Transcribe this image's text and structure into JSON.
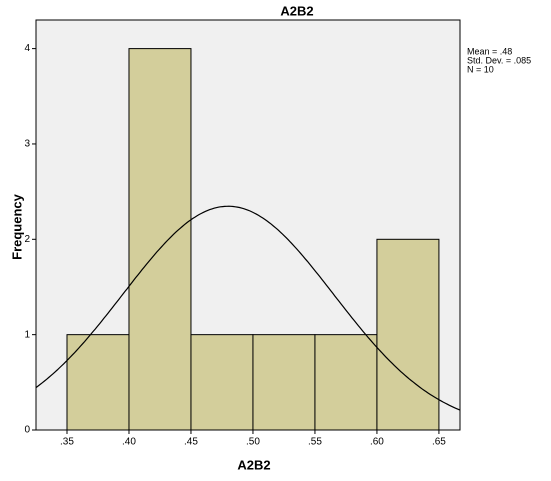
{
  "chart_data": {
    "type": "histogram",
    "title": "A2B2",
    "x_label": "A2B2",
    "y_label": "Frequency",
    "bins": [
      0.35,
      0.4,
      0.45,
      0.5,
      0.55,
      0.6,
      0.65
    ],
    "counts": [
      1,
      4,
      1,
      1,
      1,
      2
    ],
    "color": "#d3ce9b",
    "xlim": [
      0.325,
      0.667
    ],
    "ylim": [
      0,
      4.3
    ],
    "xticks": [
      {
        "value": 0.35,
        "label": ".35"
      },
      {
        "value": 0.4,
        "label": ".40"
      },
      {
        "value": 0.45,
        "label": ".45"
      },
      {
        "value": 0.5,
        "label": ".50"
      },
      {
        "value": 0.55,
        "label": ".55"
      },
      {
        "value": 0.6,
        "label": ".60"
      },
      {
        "value": 0.65,
        "label": ".65"
      }
    ],
    "yticks": [
      0,
      1,
      2,
      3,
      4
    ],
    "annotations": [
      "Mean = .48",
      "Std. Dev. = .085",
      "N = 10"
    ],
    "normal_curve": {
      "mean": 0.48,
      "std_dev": 0.085,
      "n": 10
    }
  }
}
